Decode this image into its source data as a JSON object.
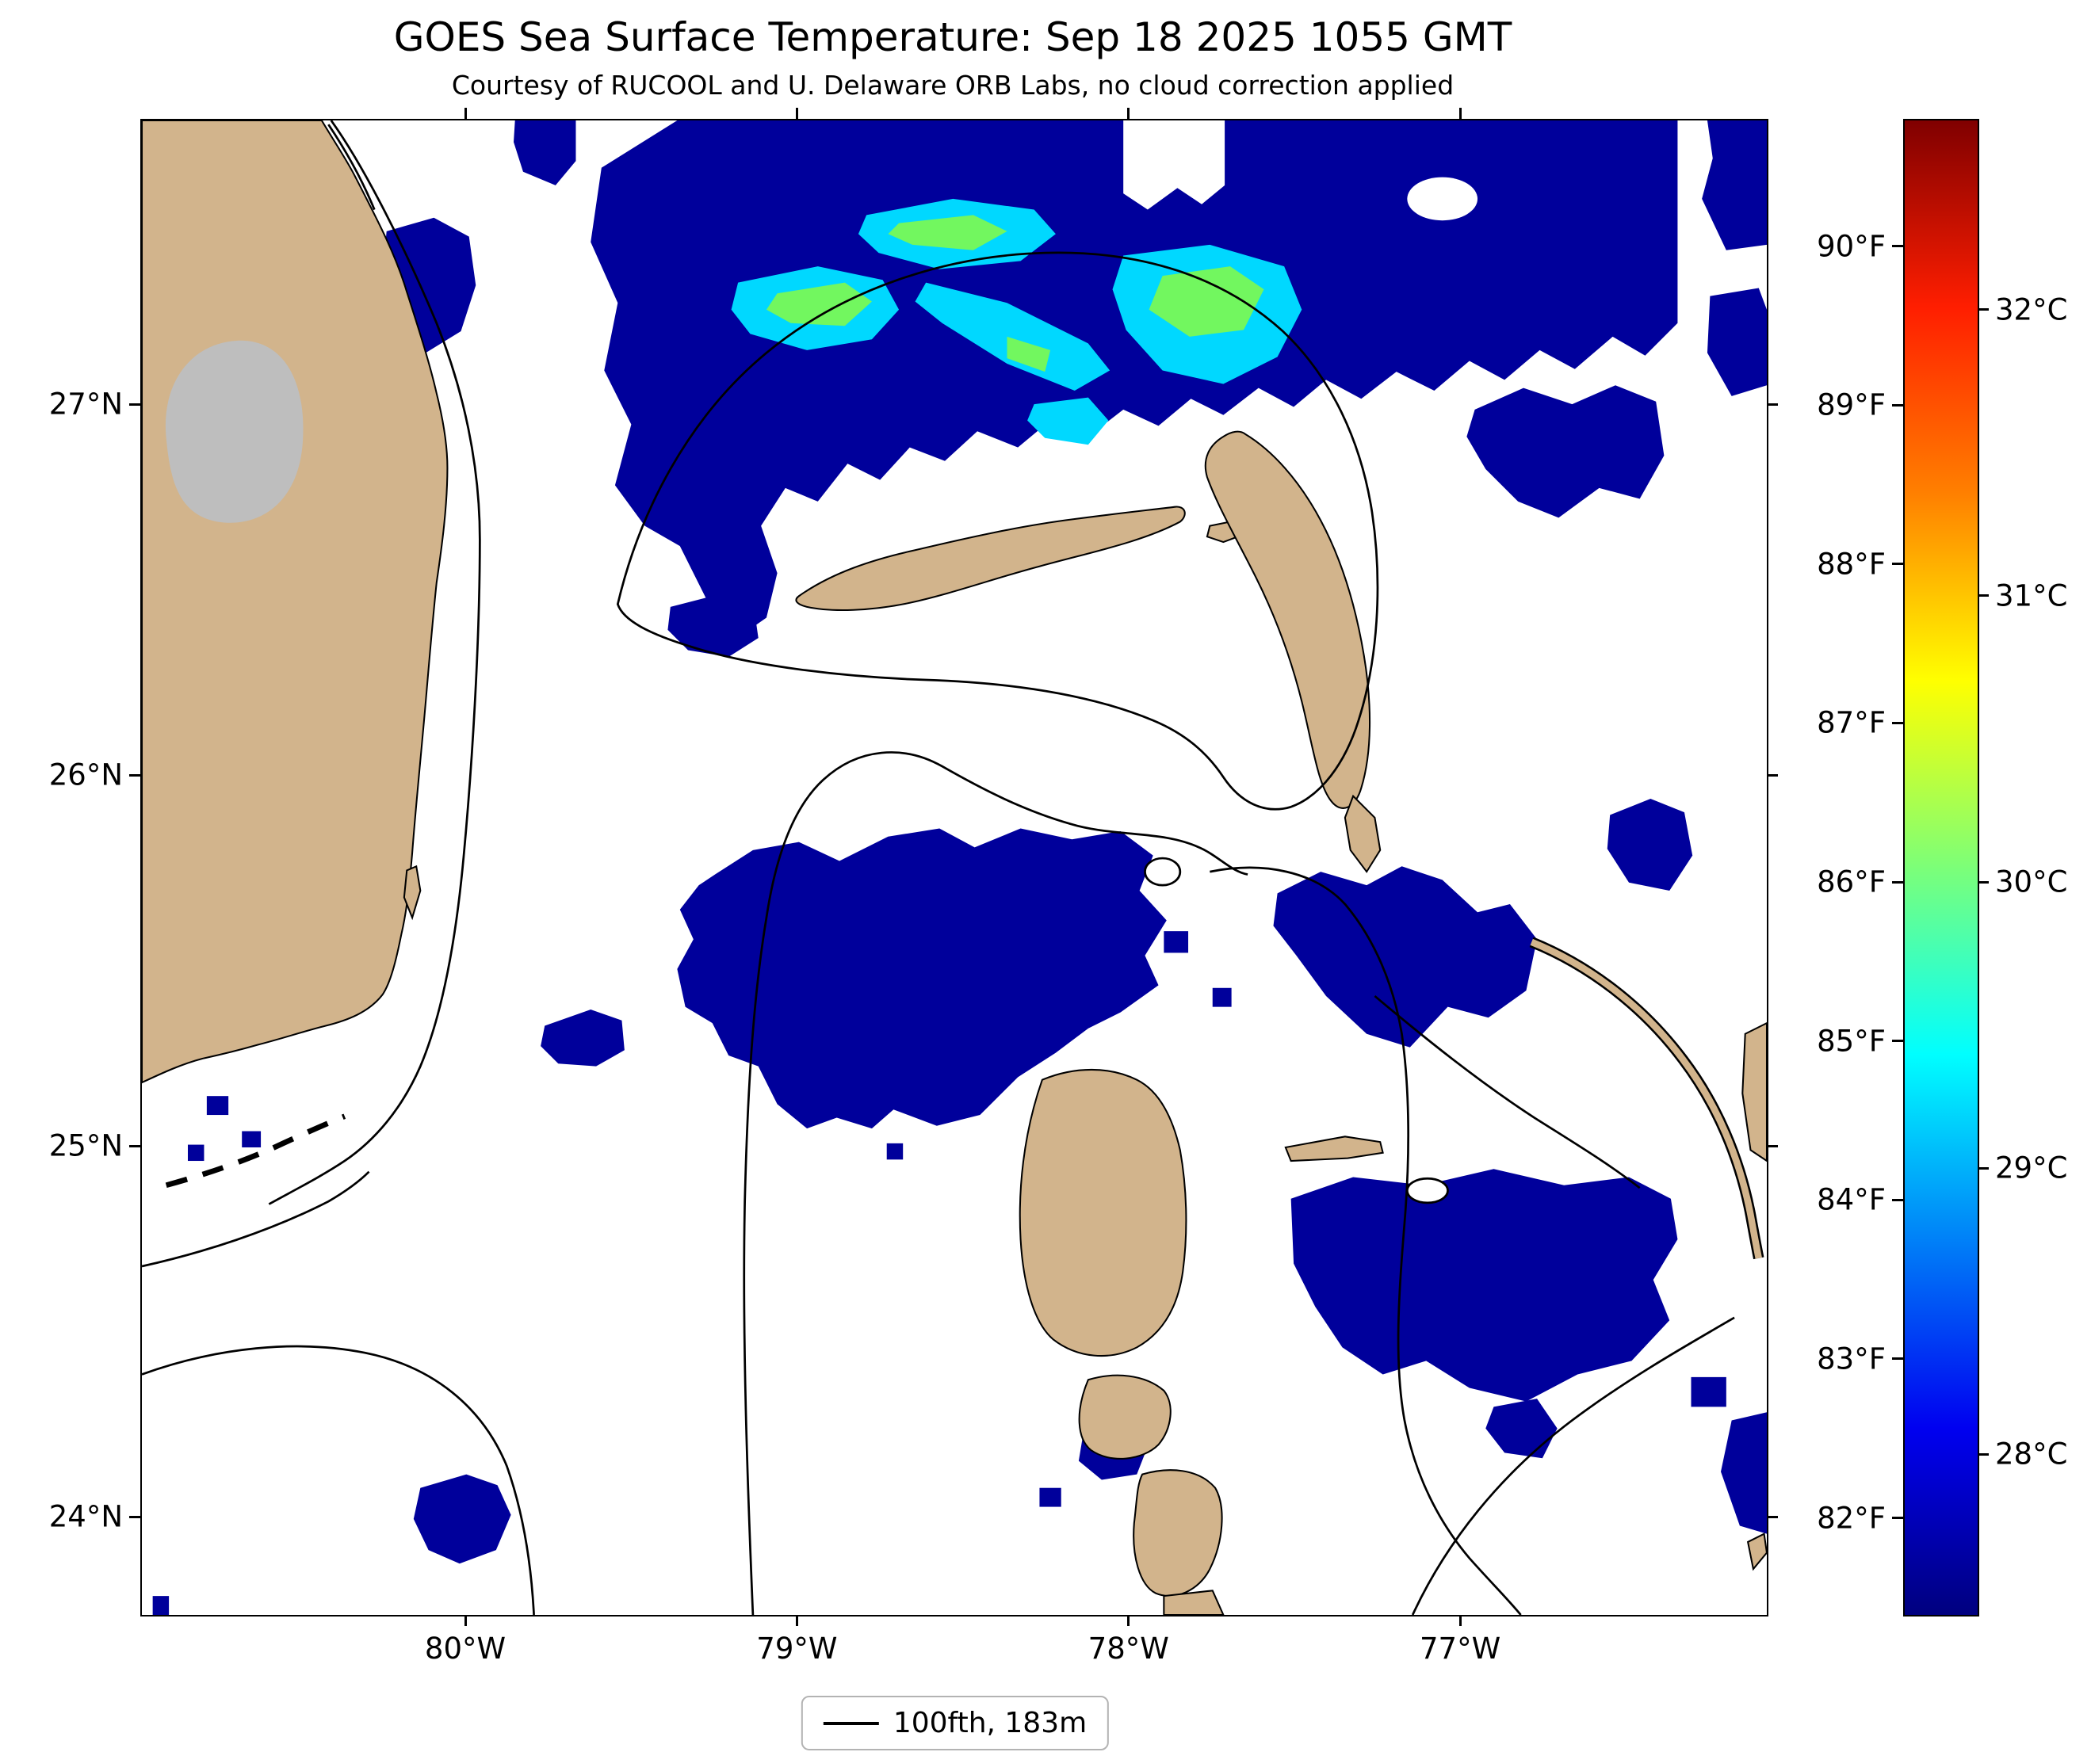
{
  "colors": {
    "land": "#D2B48C",
    "coastline": "#000000",
    "sst-cold": "#00009B",
    "sst-cyan": "#00D8FF",
    "sst-green": "#72F75F",
    "cloud": "#BEBEBE",
    "frame": "#000000",
    "legend-border": "#B3B3B3"
  },
  "chart_data": {
    "type": "heatmap",
    "title": "GOES Sea Surface Temperature: Sep 18 2025 1055 GMT",
    "subtitle": "Courtesy of RUCOOL and U. Delaware ORB Labs, no cloud correction applied",
    "axes": {
      "lon_left_degW": 80.98,
      "lon_right_degW": 76.08,
      "lat_bottom_degN": 23.74,
      "lat_top_degN": 27.77,
      "x_ticks": [
        {
          "value": 80,
          "label": "80°W"
        },
        {
          "value": 79,
          "label": "79°W"
        },
        {
          "value": 78,
          "label": "78°W"
        },
        {
          "value": 77,
          "label": "77°W"
        }
      ],
      "y_ticks": [
        {
          "value": 27,
          "label": "27°N"
        },
        {
          "value": 26,
          "label": "26°N"
        },
        {
          "value": 25,
          "label": "25°N"
        },
        {
          "value": 24,
          "label": "24°N"
        }
      ],
      "grid": false
    },
    "colorbar": {
      "orientation": "vertical",
      "colormap": "jet",
      "f_min": 81.4,
      "f_max": 90.8,
      "f_ticks": [
        {
          "value": 90,
          "label": "90°F"
        },
        {
          "value": 89,
          "label": "89°F"
        },
        {
          "value": 88,
          "label": "88°F"
        },
        {
          "value": 87,
          "label": "87°F"
        },
        {
          "value": 86,
          "label": "86°F"
        },
        {
          "value": 85,
          "label": "85°F"
        },
        {
          "value": 84,
          "label": "84°F"
        },
        {
          "value": 83,
          "label": "83°F"
        },
        {
          "value": 82,
          "label": "82°F"
        }
      ],
      "c_ticks": [
        {
          "value": 32,
          "label": "32°C"
        },
        {
          "value": 31,
          "label": "31°C"
        },
        {
          "value": 30,
          "label": "30°C"
        },
        {
          "value": 29,
          "label": "29°C"
        },
        {
          "value": 28,
          "label": "28°C"
        }
      ]
    },
    "legend": {
      "label": "100fth, 183m"
    },
    "map_features": {
      "no_data_color": "#FFFFFF",
      "regions": [
        {
          "name": "florida-atlantic-coast",
          "kind": "land"
        },
        {
          "name": "gray-cloud-patch-over-florida",
          "kind": "cloud"
        },
        {
          "name": "florida-keys",
          "kind": "land-dashes"
        },
        {
          "name": "grand-bahama-island",
          "kind": "land"
        },
        {
          "name": "great-abaco-island",
          "kind": "land"
        },
        {
          "name": "andros-island-chain",
          "kind": "land"
        },
        {
          "name": "berry-islands",
          "kind": "land"
        },
        {
          "name": "eleuthera-island-arc",
          "kind": "land"
        },
        {
          "name": "cold-sst-north-of-little-bahama-bank",
          "kind": "sst",
          "approx_temp_f": 82
        },
        {
          "name": "warm-filaments-north-of-little-bahama-bank",
          "kind": "sst",
          "approx_temp_f": "84-86"
        },
        {
          "name": "cold-sst-northwest-providence-channel",
          "kind": "sst",
          "approx_temp_f": 82
        },
        {
          "name": "cold-sst-southeast-of-andros",
          "kind": "sst",
          "approx_temp_f": 82
        },
        {
          "name": "depth-contour",
          "kind": "contour",
          "label": "100fth, 183m"
        }
      ]
    }
  }
}
